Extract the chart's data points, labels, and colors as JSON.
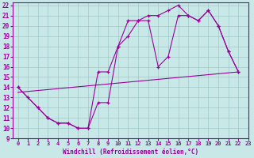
{
  "xlabel": "Windchill (Refroidissement éolien,°C)",
  "bg_color": "#c8e8e8",
  "line_color": "#990099",
  "grid_color": "#a0c8c8",
  "xlim": [
    -0.5,
    23
  ],
  "ylim": [
    9,
    22.3
  ],
  "xticks": [
    0,
    1,
    2,
    3,
    4,
    5,
    6,
    7,
    8,
    9,
    10,
    11,
    12,
    13,
    14,
    15,
    16,
    17,
    18,
    19,
    20,
    21,
    22,
    23
  ],
  "yticks": [
    9,
    10,
    11,
    12,
    13,
    14,
    15,
    16,
    17,
    18,
    19,
    20,
    21,
    22
  ],
  "line1_x": [
    0,
    1,
    2,
    3,
    4,
    5,
    6,
    7,
    8,
    9,
    10,
    11,
    12,
    13,
    14,
    15,
    16,
    17,
    18,
    19,
    20,
    21,
    22
  ],
  "line1_y": [
    14.0,
    13.0,
    12.0,
    11.0,
    10.5,
    10.5,
    10.0,
    10.0,
    15.5,
    15.5,
    18.0,
    20.5,
    20.5,
    21.0,
    21.0,
    21.5,
    22.0,
    21.0,
    20.5,
    21.5,
    20.0,
    17.5,
    15.5
  ],
  "line2_x": [
    0,
    2,
    3,
    4,
    5,
    6,
    7,
    8,
    9,
    10,
    11,
    12,
    13,
    14,
    15,
    16,
    17,
    18,
    19,
    20,
    21,
    22
  ],
  "line2_y": [
    14.0,
    12.0,
    11.0,
    10.5,
    10.5,
    10.0,
    10.0,
    12.5,
    12.5,
    18.0,
    19.0,
    20.5,
    20.5,
    16.0,
    17.0,
    21.0,
    21.0,
    20.5,
    21.5,
    20.0,
    17.5,
    15.5
  ],
  "line3_x": [
    0,
    22
  ],
  "line3_y": [
    13.5,
    15.5
  ]
}
